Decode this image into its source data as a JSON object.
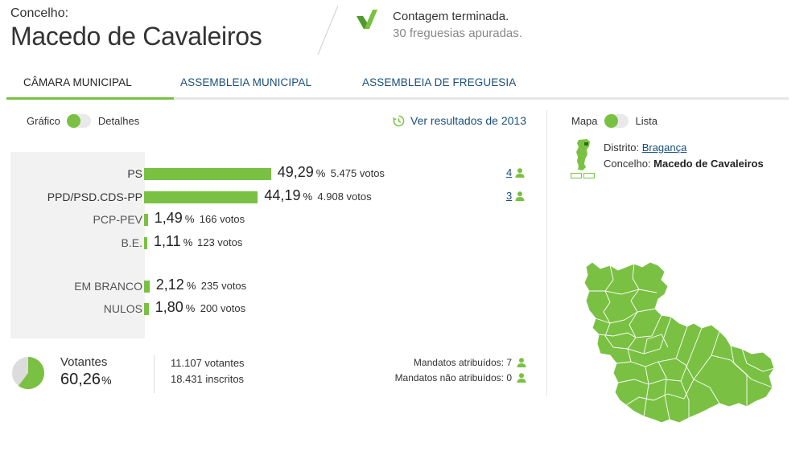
{
  "header": {
    "label": "Concelho:",
    "name": "Macedo de Cavaleiros",
    "status_title": "Contagem terminada.",
    "status_sub": "30 freguesias apuradas."
  },
  "tabs": [
    {
      "label": "Câmara Municipal",
      "active": true
    },
    {
      "label": "Assembleia Municipal",
      "active": false
    },
    {
      "label": "Assembleia de Freguesia",
      "active": false
    }
  ],
  "view_toggle": {
    "left": "Gráfico",
    "right": "Detalhes"
  },
  "history_link": "Ver resultados de 2013",
  "results": [
    {
      "party": "PS",
      "pct": "49,29",
      "votes": "5.475 votos",
      "mandates": "4",
      "share": 49.29
    },
    {
      "party": "PPD/PSD.CDS-PP",
      "pct": "44,19",
      "votes": "4.908 votos",
      "mandates": "3",
      "share": 44.19
    },
    {
      "party": "PCP-PEV",
      "pct": "1,49",
      "votes": "166 votos",
      "share": 1.49
    },
    {
      "party": "B.E.",
      "pct": "1,11",
      "votes": "123 votos",
      "share": 1.11
    },
    {
      "party": "EM BRANCO",
      "pct": "2,12",
      "votes": "235 votos",
      "share": 2.12
    },
    {
      "party": "NULOS",
      "pct": "1,80",
      "votes": "200 votos",
      "share": 1.8
    }
  ],
  "pct_sign": "%",
  "turnout": {
    "label": "Votantes",
    "value": "60,26",
    "share": 60.26,
    "votantes": "11.107 votantes",
    "inscritos": "18.431 inscritos",
    "mandatos_atribuidos": "Mandatos atribuídos: 7",
    "mandatos_nao_atribuidos": "Mandatos não atribuídos: 0"
  },
  "map_panel": {
    "toggle_left": "Mapa",
    "toggle_right": "Lista",
    "distrito_label": "Distrito:",
    "distrito_value": "Bragança",
    "concelho_label": "Concelho:",
    "concelho_value": "Macedo de Cavaleiros"
  },
  "colors": {
    "accent": "#7ac143",
    "link": "#1a4f7a",
    "panel_bg": "#f2f2f2"
  },
  "icons": [
    "check-icon",
    "history-icon",
    "person-icon",
    "portugal-map-icon",
    "municipality-map-icon"
  ]
}
